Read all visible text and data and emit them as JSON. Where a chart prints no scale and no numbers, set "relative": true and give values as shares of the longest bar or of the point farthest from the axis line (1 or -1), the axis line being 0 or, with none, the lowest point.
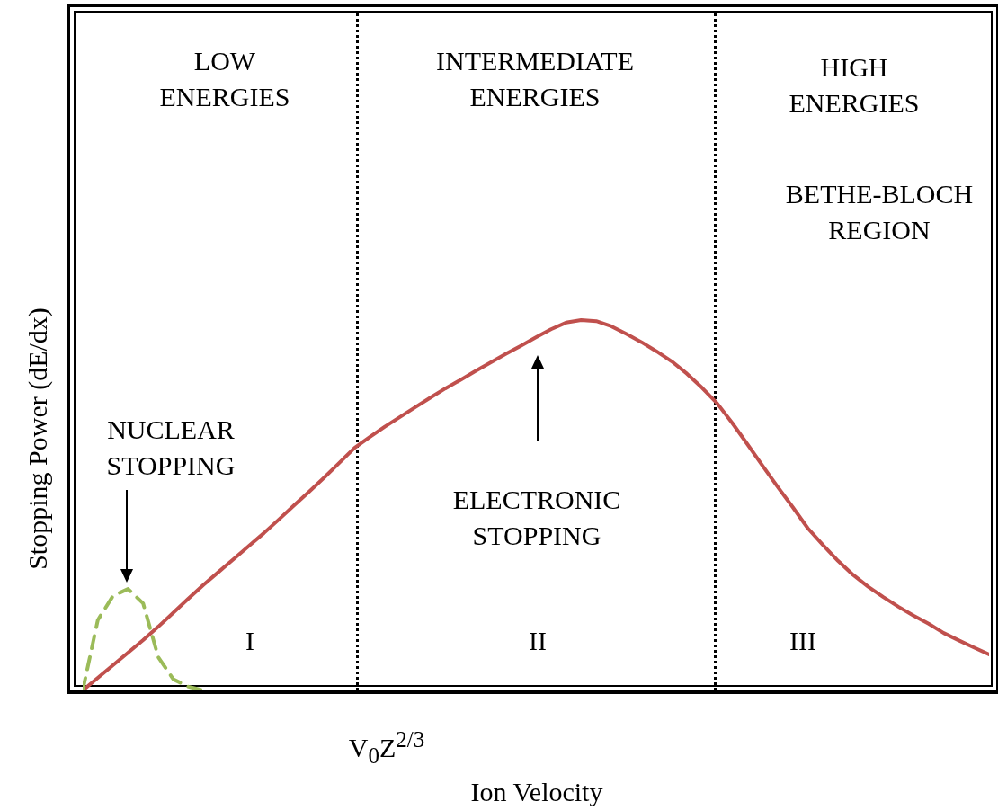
{
  "chart_data": {
    "type": "line",
    "relative": true,
    "xlabel": "Ion Velocity",
    "ylabel": "Stopping Power (dE/dx)",
    "marker": "none",
    "categories": [
      null,
      null,
      null,
      null,
      null,
      null,
      null,
      null,
      null,
      null,
      null,
      null,
      null,
      null,
      null,
      null,
      null,
      null,
      null,
      null,
      null,
      null,
      null,
      null,
      null,
      null,
      null,
      null,
      null,
      null,
      null,
      null,
      null,
      null,
      null,
      null,
      null,
      null,
      null,
      null,
      null,
      null,
      null,
      null,
      null,
      null,
      null,
      null,
      null,
      null,
      null,
      null,
      null,
      null,
      null,
      null,
      null,
      null,
      null,
      null,
      null
    ],
    "series": [
      {
        "color": "#c0504d",
        "line_style": "solid",
        "values": [
          0,
          0.034,
          0.068,
          0.102,
          0.136,
          0.172,
          0.21,
          0.248,
          0.285,
          0.32,
          0.355,
          0.39,
          0.425,
          0.462,
          0.5,
          0.537,
          0.575,
          0.615,
          0.655,
          0.684,
          0.712,
          0.738,
          0.764,
          0.79,
          0.815,
          0.838,
          0.862,
          0.885,
          0.908,
          0.93,
          0.953,
          0.975,
          0.993,
          1.0,
          0.997,
          0.983,
          0.962,
          0.94,
          0.915,
          0.888,
          0.855,
          0.817,
          0.775,
          0.722,
          0.665,
          0.607,
          0.55,
          0.495,
          0.438,
          0.393,
          0.35,
          0.312,
          0.28,
          0.252,
          0.226,
          0.202,
          0.18,
          0.155,
          0.135,
          0.116,
          0.097
        ]
      },
      {
        "color": "#9bbb59",
        "line_style": "dashed",
        "values": [
          0,
          0.19,
          0.255,
          0.274,
          0.235,
          0.09,
          0.03,
          0.01,
          0,
          null,
          null,
          null,
          null,
          null,
          null,
          null,
          null,
          null,
          null,
          null,
          null,
          null,
          null,
          null,
          null,
          null,
          null,
          null,
          null,
          null,
          null,
          null,
          null,
          null,
          null,
          null,
          null,
          null,
          null,
          null,
          null,
          null,
          null,
          null,
          null,
          null,
          null,
          null,
          null,
          null,
          null,
          null,
          null,
          null,
          null,
          null,
          null,
          null,
          null,
          null,
          null
        ]
      }
    ],
    "annotations": [
      "LOW ENERGIES",
      "INTERMEDIATE ENERGIES",
      "HIGH ENERGIES",
      "BETHE-BLOCH REGION",
      "I",
      "II",
      "III",
      "V$_{0}$Z$^{2/3}$",
      "NUCLEAR STOPPING",
      "ELECTRONIC STOPPING"
    ]
  }
}
